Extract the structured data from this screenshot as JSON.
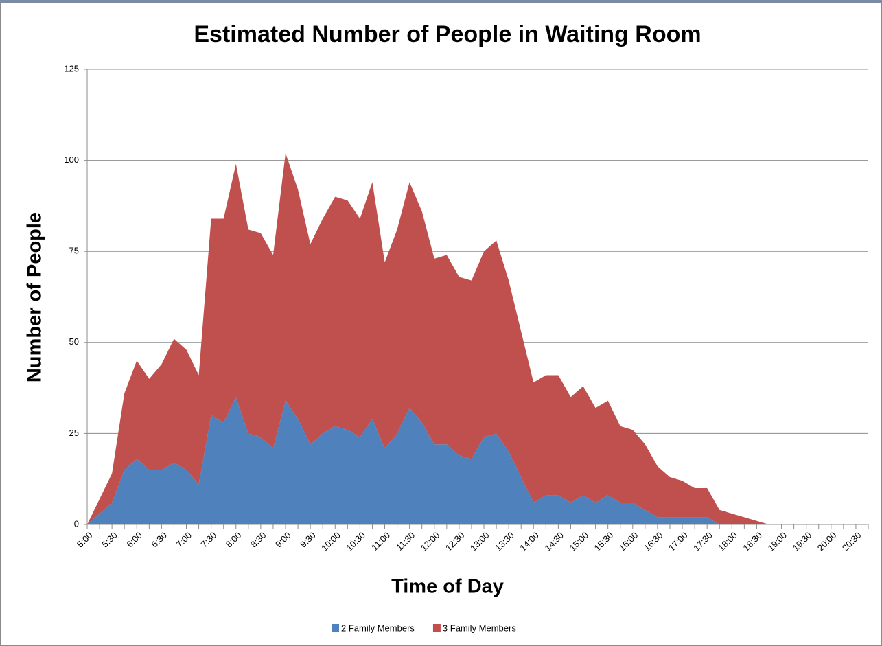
{
  "chart_data": {
    "type": "stacked-area",
    "title": "Estimated Number of People in Waiting Room",
    "x_label": "Time of Day",
    "y_label": "Number of People",
    "categories": [
      "5:00",
      null,
      "5:30",
      null,
      "6:00",
      null,
      "6:30",
      null,
      "7:00",
      null,
      "7:30",
      null,
      "8:00",
      null,
      "8:30",
      null,
      "9:00",
      null,
      "9:30",
      null,
      "10:00",
      null,
      "10:30",
      null,
      "11:00",
      null,
      "11:30",
      null,
      "12:00",
      null,
      "12:30",
      null,
      "13:00",
      null,
      "13:30",
      null,
      "14:00",
      null,
      "14:30",
      null,
      "15:00",
      null,
      "15:30",
      null,
      "16:00",
      null,
      "16:30",
      null,
      "17:00",
      null,
      "17:30",
      null,
      "18:00",
      null,
      "18:30",
      null,
      "19:00",
      null,
      "19:30",
      null,
      "20:00",
      null,
      "20:30",
      null
    ],
    "series": [
      {
        "name": "2 Family Members",
        "color": "#4f81bd",
        "values": [
          0,
          3,
          6,
          15,
          18,
          15,
          15,
          17,
          15,
          11,
          30,
          28,
          35,
          25,
          24,
          21,
          34,
          29,
          22,
          25,
          27,
          26,
          24,
          29,
          21,
          25,
          32,
          28,
          22,
          22,
          19,
          18,
          24,
          25,
          20,
          13,
          6,
          8,
          8,
          6,
          8,
          6,
          8,
          6,
          6,
          4,
          2,
          2,
          2,
          2,
          2,
          0,
          0,
          0,
          0,
          0,
          0,
          0,
          0,
          0,
          0,
          0,
          0,
          0
        ]
      },
      {
        "name": "3 Family Members",
        "color": "#c0504d",
        "values": [
          0,
          4,
          8,
          21,
          27,
          25,
          29,
          34,
          33,
          30,
          54,
          56,
          64,
          56,
          56,
          53,
          68,
          63,
          55,
          59,
          63,
          63,
          60,
          65,
          51,
          56,
          62,
          58,
          51,
          52,
          49,
          49,
          51,
          53,
          47,
          40,
          33,
          33,
          33,
          29,
          30,
          26,
          26,
          21,
          20,
          18,
          14,
          11,
          10,
          8,
          8,
          4,
          3,
          2,
          1,
          0,
          0,
          0,
          0,
          0,
          0,
          0,
          0,
          0
        ]
      }
    ],
    "ylim": [
      0,
      125
    ],
    "yticks": [
      0,
      25,
      50,
      75,
      100,
      125
    ],
    "grid": true,
    "legend": "bottom"
  }
}
